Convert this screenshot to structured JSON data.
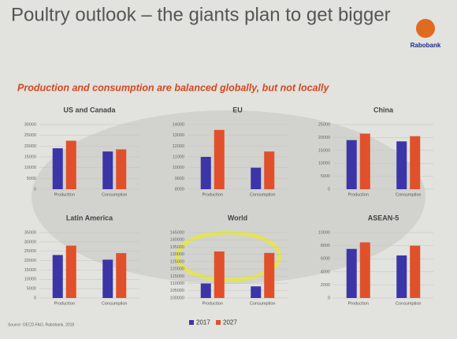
{
  "slide": {
    "title": "Poultry outlook – the giants plan to get bigger",
    "logo": "Rabobank",
    "subtitle": "Production and consumption are balanced globally, but not locally",
    "source": "Source: OECD-FAO, Rabobank, 2018"
  },
  "chart_data": [
    {
      "type": "bar",
      "title": "US and Canada",
      "categories": [
        "Production",
        "Consumption"
      ],
      "series": [
        {
          "name": "2017",
          "color": "#3b35a8",
          "values": [
            19000,
            17500
          ]
        },
        {
          "name": "2027",
          "color": "#e0502a",
          "values": [
            22500,
            18500
          ]
        }
      ],
      "ylim": [
        0,
        30000
      ],
      "yticks": [
        0,
        5000,
        10000,
        15000,
        20000,
        25000,
        30000
      ]
    },
    {
      "type": "bar",
      "title": "EU",
      "categories": [
        "Production",
        "Consumption"
      ],
      "series": [
        {
          "name": "2017",
          "color": "#3b35a8",
          "values": [
            11000,
            10000
          ]
        },
        {
          "name": "2027",
          "color": "#e0502a",
          "values": [
            13500,
            11500
          ]
        }
      ],
      "ylim": [
        8000,
        14000
      ],
      "yticks": [
        8000,
        9000,
        10000,
        11000,
        12000,
        13000,
        14000
      ]
    },
    {
      "type": "bar",
      "title": "China",
      "categories": [
        "Production",
        "Consumption"
      ],
      "series": [
        {
          "name": "2017",
          "color": "#3b35a8",
          "values": [
            19000,
            18500
          ]
        },
        {
          "name": "2027",
          "color": "#e0502a",
          "values": [
            21500,
            20500
          ]
        }
      ],
      "ylim": [
        0,
        25000
      ],
      "yticks": [
        0,
        5000,
        10000,
        15000,
        20000,
        25000
      ]
    },
    {
      "type": "bar",
      "title": "Latin America",
      "categories": [
        "Production",
        "Consumption"
      ],
      "series": [
        {
          "name": "2017",
          "color": "#3b35a8",
          "values": [
            23000,
            20500
          ]
        },
        {
          "name": "2027",
          "color": "#e0502a",
          "values": [
            28000,
            24000
          ]
        }
      ],
      "ylim": [
        0,
        35000
      ],
      "yticks": [
        0,
        5000,
        10000,
        15000,
        20000,
        25000,
        30000,
        35000
      ]
    },
    {
      "type": "bar",
      "title": "World",
      "categories": [
        "Production",
        "Consumption"
      ],
      "series": [
        {
          "name": "2017",
          "color": "#3b35a8",
          "values": [
            110000,
            108000
          ]
        },
        {
          "name": "2027",
          "color": "#e0502a",
          "values": [
            132000,
            131000
          ]
        }
      ],
      "ylim": [
        100000,
        145000
      ],
      "yticks": [
        100000,
        105000,
        110000,
        115000,
        120000,
        125000,
        130000,
        135000,
        140000,
        145000
      ]
    },
    {
      "type": "bar",
      "title": "ASEAN-5",
      "categories": [
        "Production",
        "Consumption"
      ],
      "series": [
        {
          "name": "2017",
          "color": "#3b35a8",
          "values": [
            7500,
            6500
          ]
        },
        {
          "name": "2027",
          "color": "#e0502a",
          "values": [
            8500,
            8000
          ]
        }
      ],
      "ylim": [
        0,
        10000
      ],
      "yticks": [
        0,
        2000,
        4000,
        6000,
        8000,
        10000
      ]
    }
  ]
}
